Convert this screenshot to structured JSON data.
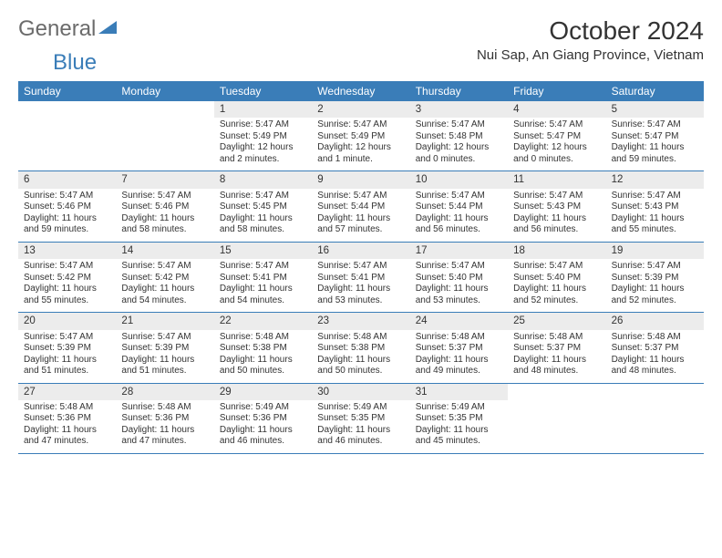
{
  "logo": {
    "word1": "General",
    "word2": "Blue"
  },
  "title": "October 2024",
  "location": "Nui Sap, An Giang Province, Vietnam",
  "colors": {
    "brand": "#3a7db8",
    "header_bg": "#3a7db8",
    "header_fg": "#ffffff",
    "daynum_bg": "#ececec",
    "text": "#333333",
    "page_bg": "#ffffff"
  },
  "day_names": [
    "Sunday",
    "Monday",
    "Tuesday",
    "Wednesday",
    "Thursday",
    "Friday",
    "Saturday"
  ],
  "weeks": [
    [
      null,
      null,
      {
        "n": "1",
        "sr": "5:47 AM",
        "ss": "5:49 PM",
        "dl": "12 hours and 2 minutes."
      },
      {
        "n": "2",
        "sr": "5:47 AM",
        "ss": "5:49 PM",
        "dl": "12 hours and 1 minute."
      },
      {
        "n": "3",
        "sr": "5:47 AM",
        "ss": "5:48 PM",
        "dl": "12 hours and 0 minutes."
      },
      {
        "n": "4",
        "sr": "5:47 AM",
        "ss": "5:47 PM",
        "dl": "12 hours and 0 minutes."
      },
      {
        "n": "5",
        "sr": "5:47 AM",
        "ss": "5:47 PM",
        "dl": "11 hours and 59 minutes."
      }
    ],
    [
      {
        "n": "6",
        "sr": "5:47 AM",
        "ss": "5:46 PM",
        "dl": "11 hours and 59 minutes."
      },
      {
        "n": "7",
        "sr": "5:47 AM",
        "ss": "5:46 PM",
        "dl": "11 hours and 58 minutes."
      },
      {
        "n": "8",
        "sr": "5:47 AM",
        "ss": "5:45 PM",
        "dl": "11 hours and 58 minutes."
      },
      {
        "n": "9",
        "sr": "5:47 AM",
        "ss": "5:44 PM",
        "dl": "11 hours and 57 minutes."
      },
      {
        "n": "10",
        "sr": "5:47 AM",
        "ss": "5:44 PM",
        "dl": "11 hours and 56 minutes."
      },
      {
        "n": "11",
        "sr": "5:47 AM",
        "ss": "5:43 PM",
        "dl": "11 hours and 56 minutes."
      },
      {
        "n": "12",
        "sr": "5:47 AM",
        "ss": "5:43 PM",
        "dl": "11 hours and 55 minutes."
      }
    ],
    [
      {
        "n": "13",
        "sr": "5:47 AM",
        "ss": "5:42 PM",
        "dl": "11 hours and 55 minutes."
      },
      {
        "n": "14",
        "sr": "5:47 AM",
        "ss": "5:42 PM",
        "dl": "11 hours and 54 minutes."
      },
      {
        "n": "15",
        "sr": "5:47 AM",
        "ss": "5:41 PM",
        "dl": "11 hours and 54 minutes."
      },
      {
        "n": "16",
        "sr": "5:47 AM",
        "ss": "5:41 PM",
        "dl": "11 hours and 53 minutes."
      },
      {
        "n": "17",
        "sr": "5:47 AM",
        "ss": "5:40 PM",
        "dl": "11 hours and 53 minutes."
      },
      {
        "n": "18",
        "sr": "5:47 AM",
        "ss": "5:40 PM",
        "dl": "11 hours and 52 minutes."
      },
      {
        "n": "19",
        "sr": "5:47 AM",
        "ss": "5:39 PM",
        "dl": "11 hours and 52 minutes."
      }
    ],
    [
      {
        "n": "20",
        "sr": "5:47 AM",
        "ss": "5:39 PM",
        "dl": "11 hours and 51 minutes."
      },
      {
        "n": "21",
        "sr": "5:47 AM",
        "ss": "5:39 PM",
        "dl": "11 hours and 51 minutes."
      },
      {
        "n": "22",
        "sr": "5:48 AM",
        "ss": "5:38 PM",
        "dl": "11 hours and 50 minutes."
      },
      {
        "n": "23",
        "sr": "5:48 AM",
        "ss": "5:38 PM",
        "dl": "11 hours and 50 minutes."
      },
      {
        "n": "24",
        "sr": "5:48 AM",
        "ss": "5:37 PM",
        "dl": "11 hours and 49 minutes."
      },
      {
        "n": "25",
        "sr": "5:48 AM",
        "ss": "5:37 PM",
        "dl": "11 hours and 48 minutes."
      },
      {
        "n": "26",
        "sr": "5:48 AM",
        "ss": "5:37 PM",
        "dl": "11 hours and 48 minutes."
      }
    ],
    [
      {
        "n": "27",
        "sr": "5:48 AM",
        "ss": "5:36 PM",
        "dl": "11 hours and 47 minutes."
      },
      {
        "n": "28",
        "sr": "5:48 AM",
        "ss": "5:36 PM",
        "dl": "11 hours and 47 minutes."
      },
      {
        "n": "29",
        "sr": "5:49 AM",
        "ss": "5:36 PM",
        "dl": "11 hours and 46 minutes."
      },
      {
        "n": "30",
        "sr": "5:49 AM",
        "ss": "5:35 PM",
        "dl": "11 hours and 46 minutes."
      },
      {
        "n": "31",
        "sr": "5:49 AM",
        "ss": "5:35 PM",
        "dl": "11 hours and 45 minutes."
      },
      null,
      null
    ]
  ],
  "labels": {
    "sunrise": "Sunrise:",
    "sunset": "Sunset:",
    "daylight": "Daylight:"
  }
}
